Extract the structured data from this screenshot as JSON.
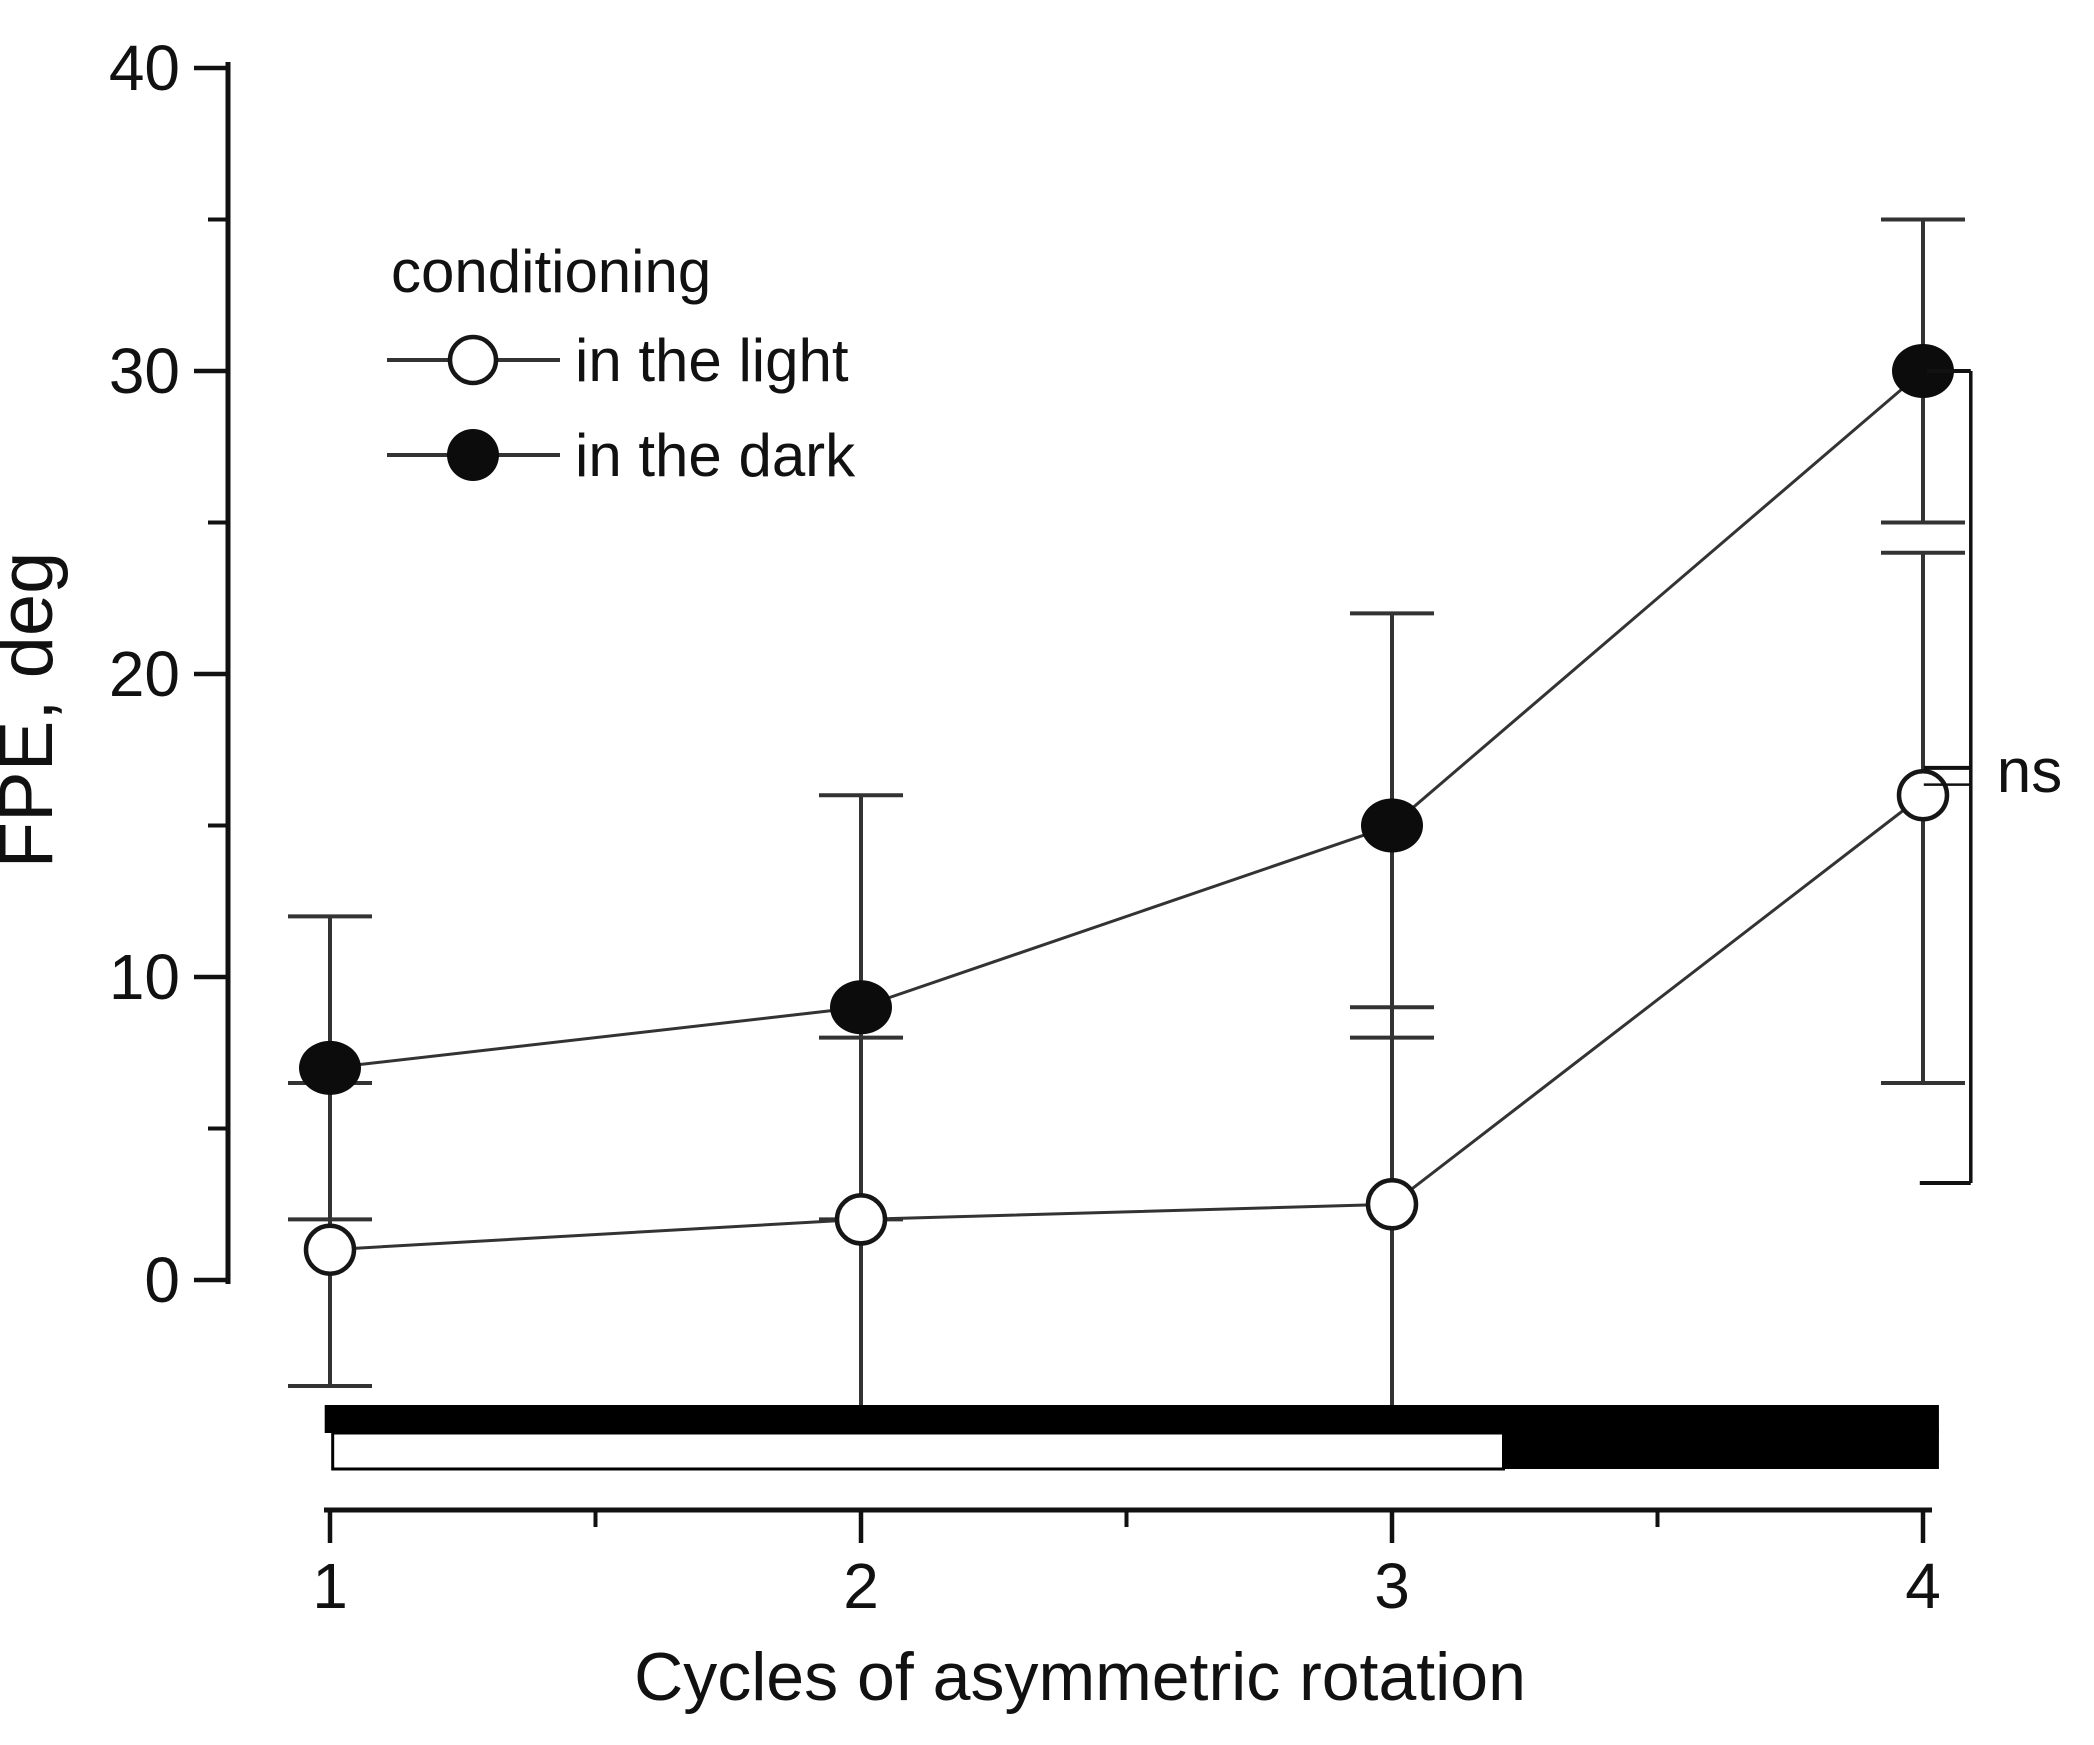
{
  "figure": {
    "background": "#ffffff",
    "ink_color": "#111111",
    "line_color": "#333333",
    "marker_dark_fill": "#0c0c0c",
    "marker_light_fill": "#ffffff",
    "marker_light_stroke": "#161616"
  },
  "chart_data": {
    "type": "line",
    "title": "",
    "xlabel": "Cycles of asymmetric rotation",
    "ylabel": "FPE, deg",
    "xlim": [
      1,
      4
    ],
    "ylim": [
      0,
      40
    ],
    "grid": false,
    "x_ticks": [
      1,
      2,
      3,
      4
    ],
    "x_minor_ticks": [
      1.5,
      2.5,
      3.5
    ],
    "y_ticks": [
      0,
      10,
      20,
      30,
      40
    ],
    "y_minor_ticks": [
      5,
      15,
      25,
      35
    ],
    "legend": {
      "title": "conditioning",
      "position": "upper-left-inside",
      "entries": [
        {
          "label": "in the light",
          "marker": "open-circle"
        },
        {
          "label": "in the dark",
          "marker": "filled-circle"
        }
      ]
    },
    "series": [
      {
        "name": "in the light",
        "marker": "open-circle",
        "x": [
          1,
          2,
          3,
          4
        ],
        "y": [
          1,
          2,
          2.5,
          16
        ],
        "err_plus": [
          5.5,
          6,
          6.5,
          8
        ],
        "err_minus": [
          4.5,
          6.5,
          7,
          9.5
        ]
      },
      {
        "name": "in the dark",
        "marker": "filled-circle",
        "x": [
          1,
          2,
          3,
          4
        ],
        "y": [
          7,
          9,
          15,
          30
        ],
        "err_plus": [
          5,
          7,
          7,
          5
        ],
        "err_minus": [
          5,
          7,
          7,
          5
        ]
      }
    ],
    "annotation": {
      "label": "ns",
      "bracket": {
        "x_cycle": 4.09,
        "top_value": 30,
        "bottom_value": 3.2,
        "mid_arm_values": [
          16.9,
          16.35
        ]
      }
    },
    "condition_bar": {
      "start_cycle": 0.99,
      "end_cycle": 4.03,
      "split_cycle": 3.21,
      "black": "#000000",
      "white": "#ffffff",
      "rows": [
        {
          "name": "dark-condition-timeline",
          "pattern": "all-black"
        },
        {
          "name": "light-condition-timeline",
          "pattern": "white-then-black"
        }
      ]
    }
  }
}
